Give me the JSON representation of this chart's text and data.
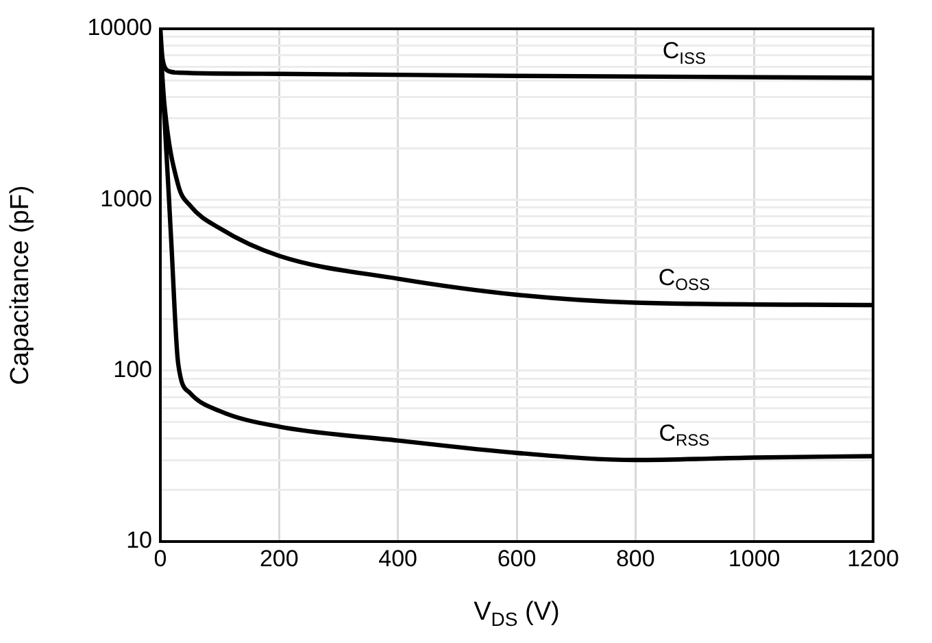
{
  "chart_data": {
    "type": "line",
    "xlabel": "V$_{DS}$ (V)",
    "ylabel": "Capacitance (pF)",
    "xlim": [
      0,
      1200
    ],
    "xticks": [
      0,
      200,
      400,
      600,
      800,
      1000,
      1200
    ],
    "ylim": [
      10,
      10000
    ],
    "log": "y",
    "yticks": [
      10,
      {
        "value": 20,
        "label": null
      },
      {
        "value": 30,
        "label": null
      },
      {
        "value": 40,
        "label": null
      },
      {
        "value": 50,
        "label": null
      },
      {
        "value": 60,
        "label": null
      },
      {
        "value": 70,
        "label": null
      },
      {
        "value": 80,
        "label": null
      },
      {
        "value": 90,
        "label": null
      },
      100,
      {
        "value": 200,
        "label": null
      },
      {
        "value": 300,
        "label": null
      },
      {
        "value": 400,
        "label": null
      },
      {
        "value": 500,
        "label": null
      },
      {
        "value": 600,
        "label": null
      },
      {
        "value": 700,
        "label": null
      },
      {
        "value": 800,
        "label": null
      },
      {
        "value": 900,
        "label": null
      },
      1000,
      {
        "value": 2000,
        "label": null
      },
      {
        "value": 3000,
        "label": null
      },
      {
        "value": 4000,
        "label": null
      },
      {
        "value": 5000,
        "label": null
      },
      {
        "value": 6000,
        "label": null
      },
      {
        "value": 7000,
        "label": null
      },
      {
        "value": 8000,
        "label": null
      },
      {
        "value": 9000,
        "label": null
      },
      10000
    ],
    "grid": true,
    "legend": false,
    "marker": "none",
    "line_style": "solid",
    "series": [
      {
        "name": "C$_{ISS}$",
        "color": "#000000",
        "x": [
          0,
          3,
          7,
          12,
          30,
          200,
          600,
          1200
        ],
        "values": [
          10000,
          7000,
          6000,
          5700,
          5540,
          5450,
          5300,
          5170
        ]
      },
      {
        "name": "C$_{OSS}$",
        "color": "#000000",
        "x": [
          0,
          7,
          30,
          50,
          100,
          200,
          400,
          600,
          800,
          1200
        ],
        "values": [
          8000,
          3550,
          1220,
          925,
          680,
          469,
          345,
          278,
          250,
          242
        ]
      },
      {
        "name": "C$_{RSS}$",
        "color": "#000000",
        "x": [
          0,
          7,
          18,
          30,
          50,
          100,
          200,
          400,
          600,
          800,
          1000,
          1200
        ],
        "values": [
          6000,
          2970,
          600,
          110,
          74,
          58,
          47,
          39,
          33,
          30,
          31,
          31.6
        ]
      }
    ]
  }
}
